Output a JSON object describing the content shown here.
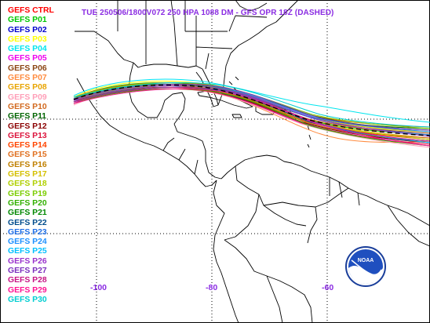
{
  "title": "TUE 250506/1800V072  250 HPA 1088 DM - GFS OPR 18Z (DASHED)",
  "legend": [
    {
      "label": "GEFS CTRL",
      "color": "#ff0000"
    },
    {
      "label": "GEFS P01",
      "color": "#00c800"
    },
    {
      "label": "GEFS P02",
      "color": "#0000cd"
    },
    {
      "label": "GEFS P03",
      "color": "#ffff00"
    },
    {
      "label": "GEFS P04",
      "color": "#00e5ee"
    },
    {
      "label": "GEFS P05",
      "color": "#ee00ee"
    },
    {
      "label": "GEFS P06",
      "color": "#8b4513"
    },
    {
      "label": "GEFS P07",
      "color": "#ff8c40"
    },
    {
      "label": "GEFS P08",
      "color": "#e8a400"
    },
    {
      "label": "GEFS P09",
      "color": "#ff9fb8"
    },
    {
      "label": "GEFS P10",
      "color": "#d2691e"
    },
    {
      "label": "GEFS P11",
      "color": "#006400"
    },
    {
      "label": "GEFS P12",
      "color": "#8b0000"
    },
    {
      "label": "GEFS P13",
      "color": "#dc143c"
    },
    {
      "label": "GEFS P14",
      "color": "#ff4500"
    },
    {
      "label": "GEFS P15",
      "color": "#e07020"
    },
    {
      "label": "GEFS P16",
      "color": "#c08000"
    },
    {
      "label": "GEFS P17",
      "color": "#d4c000"
    },
    {
      "label": "GEFS P18",
      "color": "#b0d000"
    },
    {
      "label": "GEFS P19",
      "color": "#7ccd00"
    },
    {
      "label": "GEFS P20",
      "color": "#32b000"
    },
    {
      "label": "GEFS P21",
      "color": "#008800"
    },
    {
      "label": "GEFS P22",
      "color": "#004c8c"
    },
    {
      "label": "GEFS P23",
      "color": "#1e6ee6"
    },
    {
      "label": "GEFS P24",
      "color": "#1e90ff"
    },
    {
      "label": "GEFS P25",
      "color": "#00bfff"
    },
    {
      "label": "GEFS P26",
      "color": "#9932cc"
    },
    {
      "label": "GEFS P27",
      "color": "#7b2fbe"
    },
    {
      "label": "GEFS P28",
      "color": "#c71585"
    },
    {
      "label": "GEFS P29",
      "color": "#ff1493"
    },
    {
      "label": "GEFS P30",
      "color": "#00ced1"
    }
  ],
  "longitude_labels": {
    "w100": "-100",
    "w80": "-80",
    "w60": "-60"
  },
  "logo_text": "NOAA",
  "colors": {
    "title": "#8a2be2",
    "coastline": "#000000",
    "grid": "#000000",
    "background": "#ffffff"
  }
}
